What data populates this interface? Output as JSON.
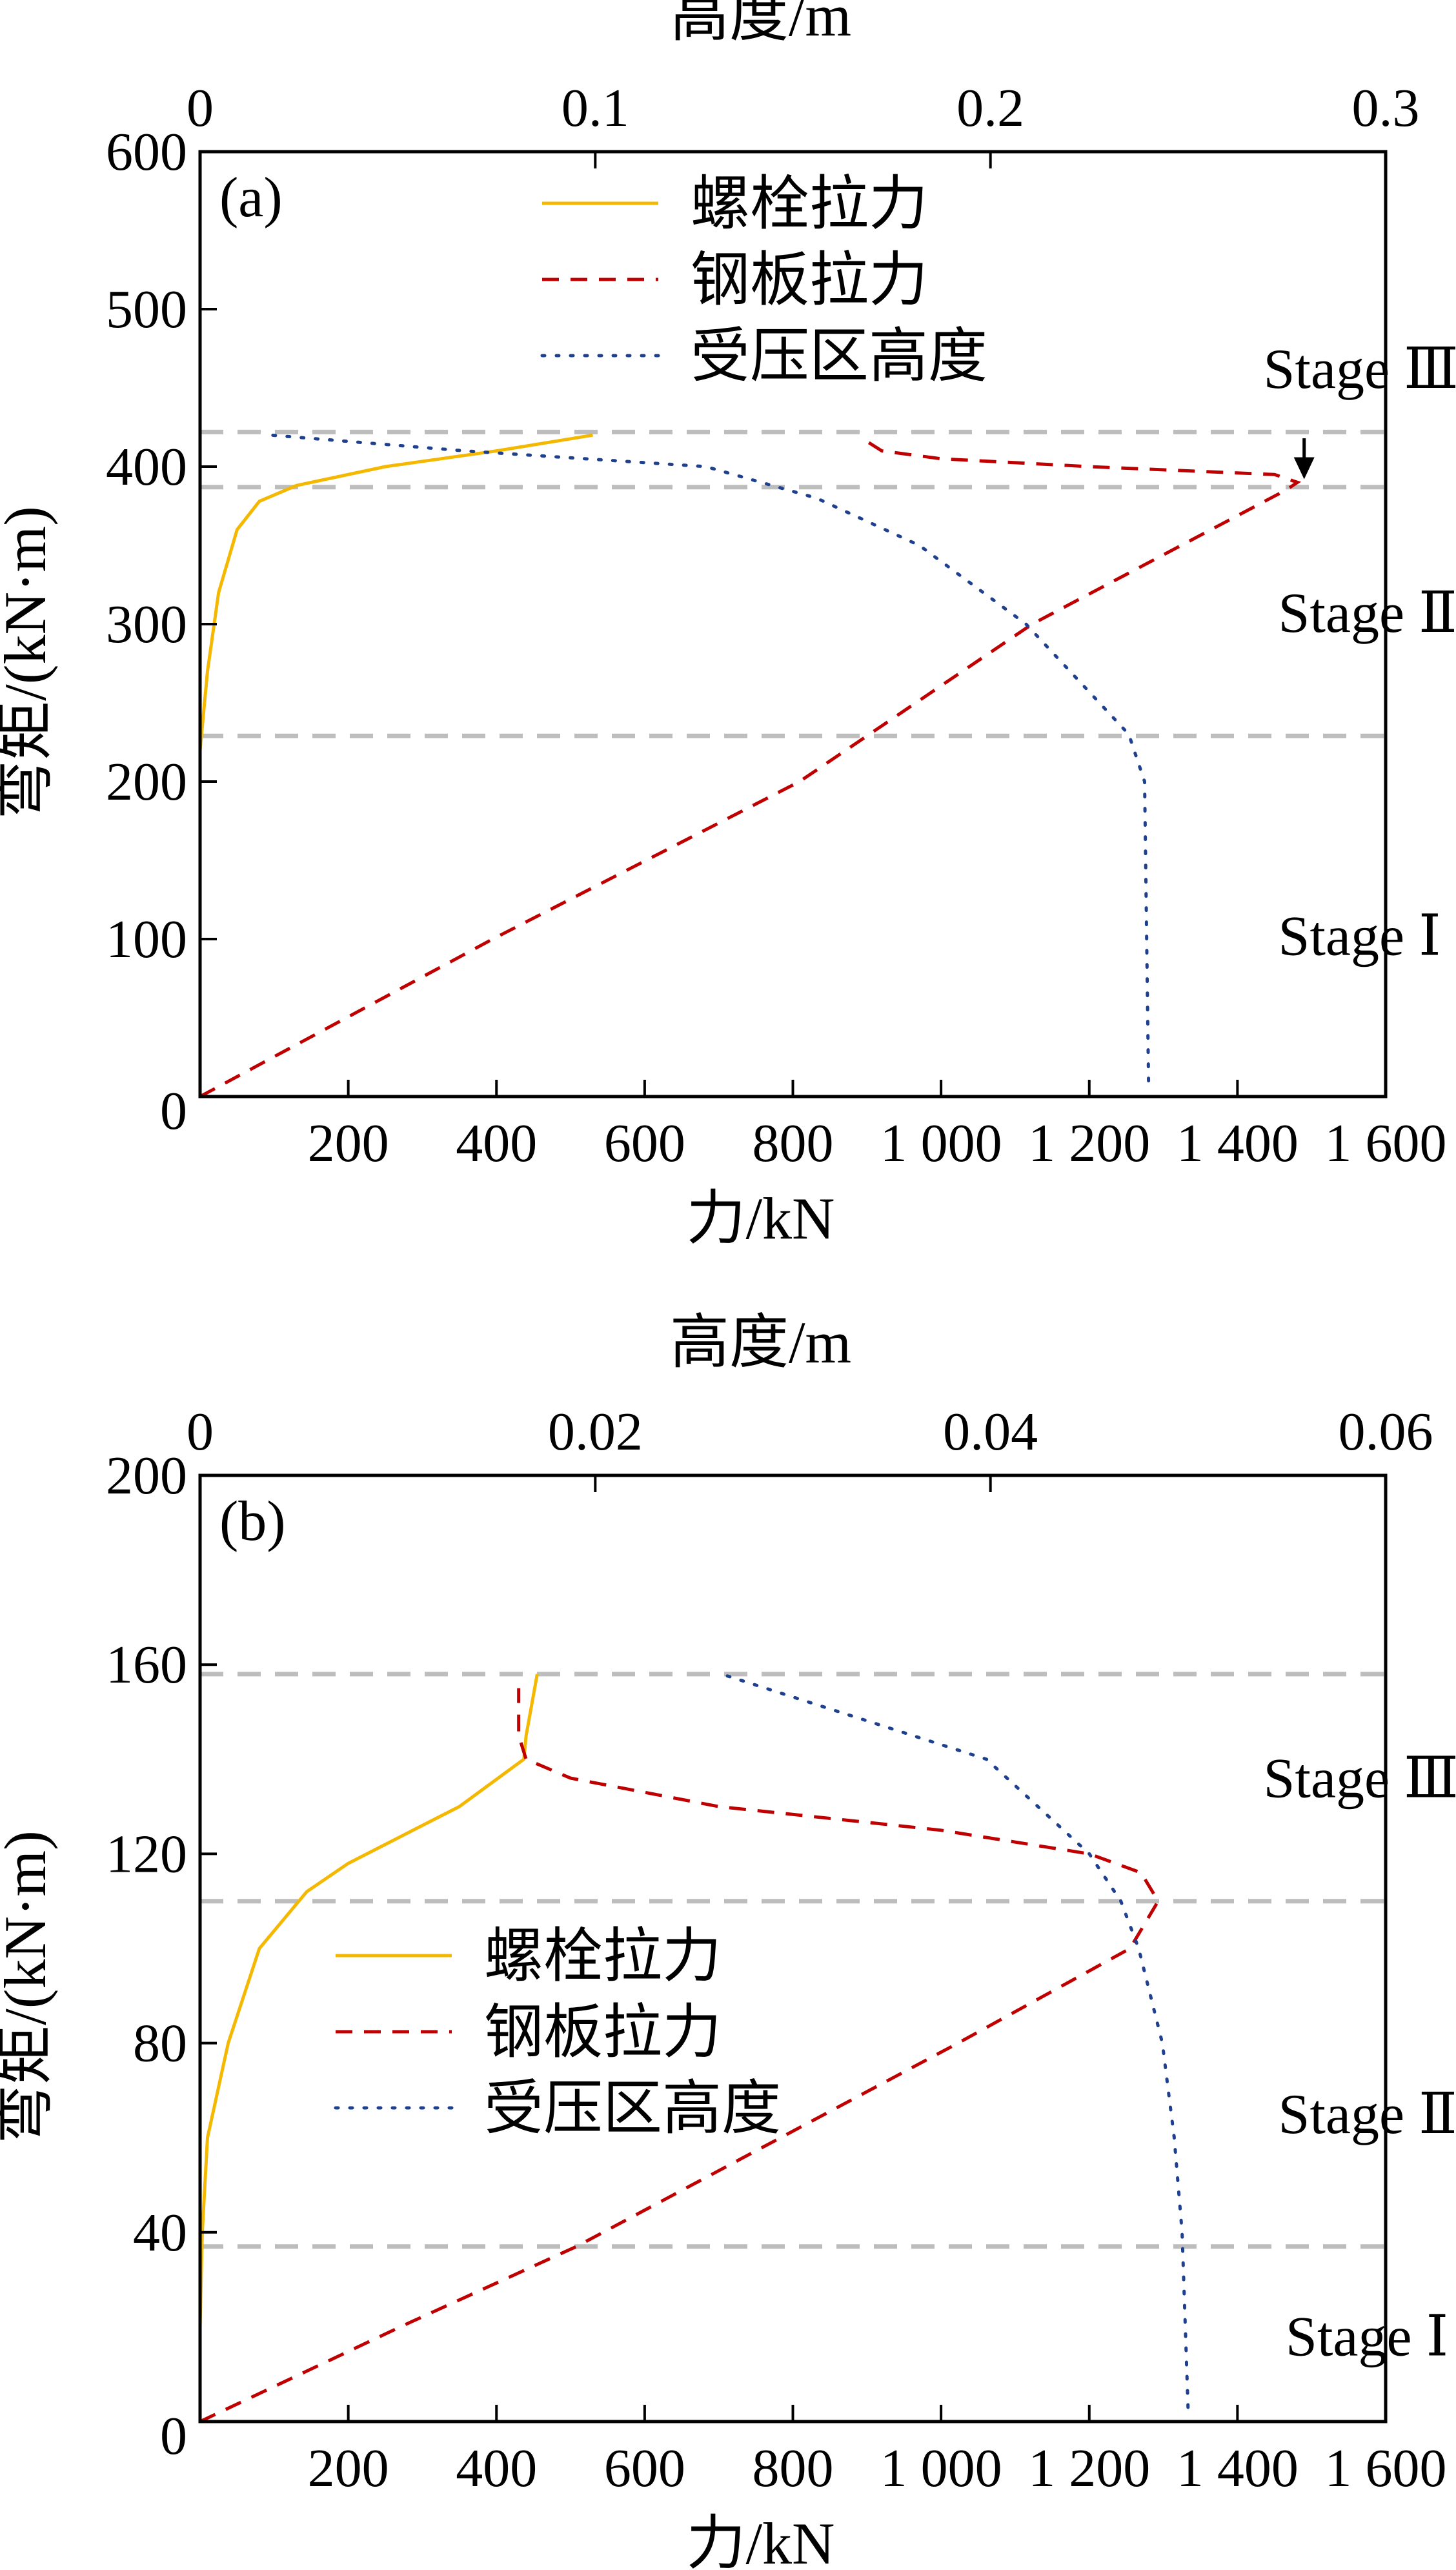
{
  "chart_data": [
    {
      "type": "line",
      "panel_label": "(a)",
      "xlabel": "力/kN",
      "x2label": "高度/m",
      "ylabel": "弯矩/(kN·m)",
      "xlim": [
        0,
        1600
      ],
      "x2lim": [
        0,
        0.3
      ],
      "ylim": [
        0,
        600
      ],
      "x_ticks": [
        0,
        200,
        400,
        600,
        800,
        1000,
        1200,
        1400,
        1600
      ],
      "x_tick_labels": [
        "",
        "200",
        "400",
        "600",
        "800",
        "1 000",
        "1 200",
        "1 400",
        "1 600"
      ],
      "x2_ticks": [
        0,
        0.1,
        0.2,
        0.3
      ],
      "x2_tick_labels": [
        "0",
        "0.1",
        "0.2",
        "0.3"
      ],
      "y_ticks": [
        0,
        100,
        200,
        300,
        400,
        500,
        600
      ],
      "y_tick_labels": [
        "0",
        "100",
        "200",
        "300",
        "400",
        "500",
        "600"
      ],
      "legend_placement": "top-center",
      "stage_lines": [
        422,
        387,
        229
      ],
      "stage_labels": [
        {
          "text": "Stage Ⅲ",
          "y": 450,
          "x": 1435
        },
        {
          "text": "Stage Ⅱ",
          "y": 295,
          "x": 1455
        },
        {
          "text": "Stage Ⅰ",
          "y": 90,
          "x": 1455
        }
      ],
      "arrow": {
        "x": 1490,
        "y_from": 418,
        "y_to": 392
      },
      "series": [
        {
          "name": "螺栓拉力",
          "axis": "bottom",
          "color": "#f5b800",
          "style": "solid",
          "x": [
            0,
            10,
            25,
            50,
            80,
            130,
            250,
            400,
            530
          ],
          "y": [
            220,
            270,
            320,
            360,
            378,
            388,
            400,
            410,
            420
          ]
        },
        {
          "name": "钢板拉力",
          "axis": "bottom",
          "color": "#c00000",
          "style": "dashed",
          "x": [
            0,
            395,
            809,
            1123,
            1465,
            1481,
            1450,
            1200,
            1000,
            920,
            900
          ],
          "y": [
            0,
            100,
            200,
            300,
            385,
            390,
            395,
            400,
            405,
            410,
            416
          ]
        },
        {
          "name": "受压区高度",
          "axis": "top",
          "color": "#1f3f8f",
          "style": "dotted",
          "x": [
            0.24,
            0.239,
            0.235,
            0.209,
            0.182,
            0.156,
            0.128,
            0.067,
            0.018
          ],
          "y": [
            10,
            200,
            230,
            300,
            350,
            380,
            400,
            410,
            420
          ]
        }
      ]
    },
    {
      "type": "line",
      "panel_label": "(b)",
      "xlabel": "力/kN",
      "x2label": "高度/m",
      "ylabel": "弯矩/(kN·m)",
      "xlim": [
        0,
        1600
      ],
      "x2lim": [
        0,
        0.06
      ],
      "ylim": [
        0,
        200
      ],
      "x_ticks": [
        0,
        200,
        400,
        600,
        800,
        1000,
        1200,
        1400,
        1600
      ],
      "x_tick_labels": [
        "",
        "200",
        "400",
        "600",
        "800",
        "1 000",
        "1 200",
        "1 400",
        "1 600"
      ],
      "x2_ticks": [
        0,
        0.02,
        0.04,
        0.06
      ],
      "x2_tick_labels": [
        "0",
        "0.02",
        "0.04",
        "0.06"
      ],
      "y_ticks": [
        0,
        40,
        80,
        120,
        160,
        200
      ],
      "y_tick_labels": [
        "0",
        "40",
        "80",
        "120",
        "160",
        "200"
      ],
      "legend_placement": "center-left",
      "stage_lines": [
        158,
        110,
        37
      ],
      "stage_labels": [
        {
          "text": "Stage Ⅲ",
          "y": 132,
          "x": 1435
        },
        {
          "text": "Stage Ⅱ",
          "y": 61,
          "x": 1455
        },
        {
          "text": "Stage Ⅰ",
          "y": 14,
          "x": 1465
        }
      ],
      "series": [
        {
          "name": "螺栓拉力",
          "axis": "bottom",
          "color": "#f5b800",
          "style": "solid",
          "x": [
            0,
            3,
            10,
            38,
            80,
            144,
            200,
            300,
            350,
            437,
            440,
            455
          ],
          "y": [
            20,
            40,
            60,
            80,
            100,
            112,
            118,
            126,
            130,
            140,
            145,
            158
          ]
        },
        {
          "name": "钢板拉力",
          "axis": "bottom",
          "color": "#c00000",
          "style": "dashed",
          "x": [
            0,
            270,
            508,
            1023,
            1255,
            1293,
            1270,
            1200,
            1000,
            700,
            500,
            440,
            430,
            430
          ],
          "y": [
            0,
            20,
            37,
            80,
            100,
            110,
            116,
            120,
            125,
            130,
            136,
            140,
            145,
            155
          ]
        },
        {
          "name": "受压区高度",
          "axis": "top",
          "color": "#1f3f8f",
          "style": "dotted",
          "x": [
            0.05,
            0.0497,
            0.0493,
            0.0487,
            0.0475,
            0.0466,
            0.045,
            0.0398,
            0.0264
          ],
          "y": [
            3,
            40,
            60,
            80,
            100,
            110,
            120,
            140,
            158
          ]
        }
      ]
    }
  ]
}
